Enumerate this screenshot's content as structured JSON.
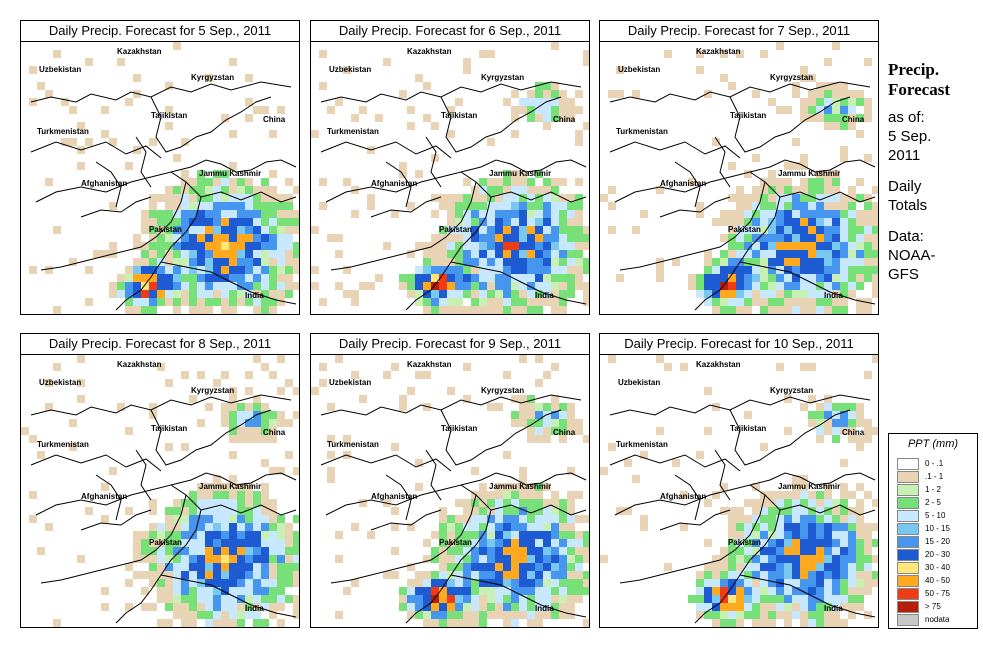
{
  "panels": [
    {
      "title": "Daily Precip. Forecast for  5 Sep., 2011",
      "heavy_south": true,
      "wet_north": false
    },
    {
      "title": "Daily Precip. Forecast for  6 Sep., 2011",
      "heavy_south": true,
      "wet_north": true
    },
    {
      "title": "Daily Precip. Forecast for  7 Sep., 2011",
      "heavy_south": true,
      "wet_north": true
    },
    {
      "title": "Daily Precip. Forecast for  8 Sep., 2011",
      "heavy_south": false,
      "wet_north": true
    },
    {
      "title": "Daily Precip. Forecast for  9 Sep., 2011",
      "heavy_south": true,
      "wet_north": true
    },
    {
      "title": "Daily Precip. Forecast for  10 Sep., 2011",
      "heavy_south": true,
      "wet_north": true
    }
  ],
  "map_labels": {
    "kazakhstan": "Kazakhstan",
    "uzbekistan": "Uzbekistan",
    "kyrgyzstan": "Kyrgyzstan",
    "tajikistan": "Tajikistan",
    "turkmenistan": "Turkmenistan",
    "china": "China",
    "afghanistan": "Afghanistan",
    "jammu_kashmir": "Jammu Kashmir",
    "pakistan": "Pakistan",
    "india": "India"
  },
  "side": {
    "title_line1": "Precip.",
    "title_line2": "Forecast",
    "asof_line1": "as of:",
    "asof_line2": "5 Sep.",
    "asof_line3": "2011",
    "totals_line1": "Daily",
    "totals_line2": "Totals",
    "data_line1": "Data:",
    "data_line2": "NOAA-",
    "data_line3": "GFS"
  },
  "legend": {
    "title": "PPT (mm)",
    "items": [
      {
        "label": "0 - .1",
        "color": "#ffffff"
      },
      {
        "label": ".1 - 1",
        "color": "#e8d3b4"
      },
      {
        "label": "1 - 2",
        "color": "#c8f0b4"
      },
      {
        "label": "2 - 5",
        "color": "#78e078"
      },
      {
        "label": "5 - 10",
        "color": "#c8e8ff"
      },
      {
        "label": "10 - 15",
        "color": "#78c8f0"
      },
      {
        "label": "15 - 20",
        "color": "#4696f0"
      },
      {
        "label": "20 - 30",
        "color": "#1e5ad2"
      },
      {
        "label": "30 - 40",
        "color": "#ffe678"
      },
      {
        "label": "40 - 50",
        "color": "#ffaa1e"
      },
      {
        "label": "50 - 75",
        "color": "#f03c14"
      },
      {
        "label": "> 75",
        "color": "#b41e0a"
      },
      {
        "label": "nodata",
        "color": "#c8c8c8"
      }
    ]
  }
}
